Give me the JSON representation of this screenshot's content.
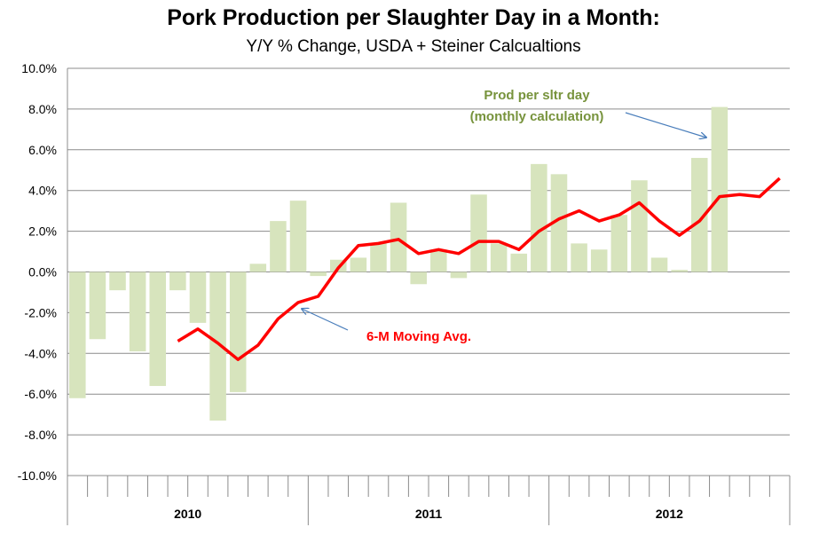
{
  "title": "Pork Production per Slaughter Day in a Month:",
  "subtitle": "Y/Y % Change, USDA + Steiner Calcualtions",
  "chart_data": {
    "type": "bar",
    "ylim": [
      -10,
      10
    ],
    "yticks": [
      "10.0%",
      "8.0%",
      "6.0%",
      "4.0%",
      "2.0%",
      "0.0%",
      "-2.0%",
      "-4.0%",
      "-6.0%",
      "-8.0%",
      "-10.0%"
    ],
    "year_labels": [
      "2010",
      "2011",
      "2012"
    ],
    "months_per_year": 12,
    "grid": true,
    "series": [
      {
        "name": "Prod per sltr day (monthly calculation)",
        "kind": "bar",
        "color": "#d7e4bd",
        "values": [
          -6.2,
          -3.3,
          -0.9,
          -3.9,
          -5.6,
          -0.9,
          -2.5,
          -7.3,
          -5.9,
          0.4,
          2.5,
          3.5,
          -0.2,
          0.6,
          0.7,
          1.4,
          3.4,
          -0.6,
          1.1,
          -0.3,
          3.8,
          1.4,
          0.9,
          5.3,
          4.8,
          1.4,
          1.1,
          2.8,
          4.5,
          0.7,
          0.1,
          5.6,
          8.1,
          null,
          null,
          null
        ]
      },
      {
        "name": "6-M Moving Avg.",
        "kind": "line",
        "color": "#ff0000",
        "values": [
          null,
          null,
          null,
          null,
          null,
          -3.4,
          -2.8,
          -3.5,
          -4.3,
          -3.6,
          -2.3,
          -1.5,
          -1.2,
          0.2,
          1.3,
          1.4,
          1.6,
          0.9,
          1.1,
          0.9,
          1.5,
          1.5,
          1.1,
          2.0,
          2.6,
          3.0,
          2.5,
          2.8,
          3.4,
          2.5,
          1.8,
          2.5,
          3.7,
          3.8,
          3.7,
          4.6
        ]
      }
    ],
    "annotations": [
      {
        "text_lines": [
          "Prod per sltr day",
          "(monthly calculation)"
        ],
        "color": "#77933c"
      },
      {
        "text_lines": [
          "6-M Moving Avg."
        ],
        "color": "#ff0000"
      }
    ]
  }
}
